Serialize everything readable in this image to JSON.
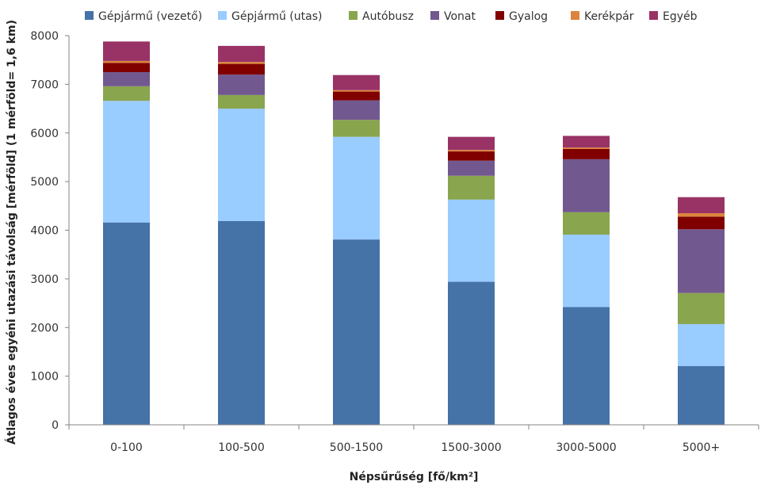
{
  "chart_data": {
    "type": "bar",
    "stacked": true,
    "title": "",
    "xlabel": "Népsűrűség [fő/km²]",
    "ylabel": "Átlagos éves egyéni utazási távolság [mérföld] (1 mérföld= 1,6 km)",
    "ylim": [
      0,
      8000
    ],
    "yticks": [
      0,
      1000,
      2000,
      3000,
      4000,
      5000,
      6000,
      7000,
      8000
    ],
    "grid": false,
    "legend_position": "top",
    "categories": [
      "0-100",
      "100-500",
      "500-1500",
      "1500-3000",
      "3000-5000",
      "5000+"
    ],
    "series": [
      {
        "name": "Gépjármű (vezető)",
        "color": "#4572A7",
        "values": [
          4160,
          4190,
          3810,
          2940,
          2420,
          1210
        ]
      },
      {
        "name": "Gépjármű (utas)",
        "color": "#99CCFF",
        "values": [
          2500,
          2310,
          2110,
          1690,
          1490,
          860
        ]
      },
      {
        "name": "Autóbusz",
        "color": "#89A54E",
        "values": [
          300,
          280,
          350,
          490,
          460,
          640
        ]
      },
      {
        "name": "Vonat",
        "color": "#71588F",
        "values": [
          290,
          420,
          400,
          310,
          1090,
          1310
        ]
      },
      {
        "name": "Gyalog",
        "color": "#800000",
        "values": [
          190,
          220,
          180,
          190,
          210,
          260
        ]
      },
      {
        "name": "Kerékpár",
        "color": "#DB843D",
        "values": [
          40,
          40,
          30,
          30,
          30,
          70
        ]
      },
      {
        "name": "Egyéb",
        "color": "#993366",
        "values": [
          400,
          330,
          310,
          270,
          240,
          330
        ]
      }
    ]
  }
}
